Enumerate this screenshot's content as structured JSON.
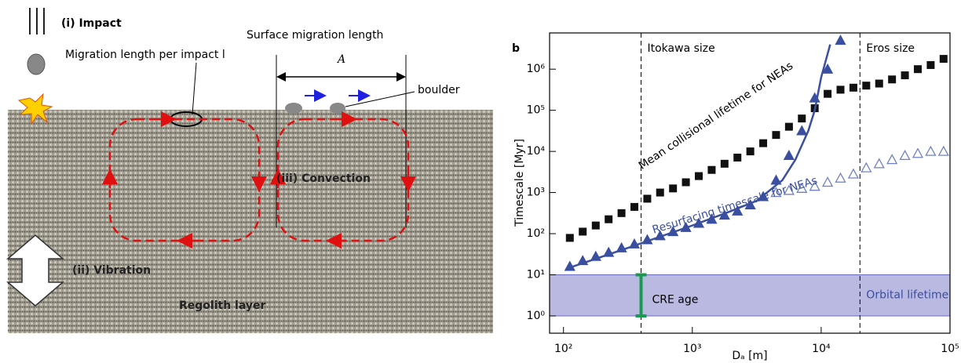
{
  "diagram": {
    "impact": "(i) Impact",
    "surface_migration": "Surface migration length",
    "A": "A",
    "migration_per_impact": "Migration length per impact l",
    "boulder": "boulder",
    "convection": "(iii) Convection",
    "vibration": "(ii) Vibration",
    "regolith": "Regolith layer"
  },
  "chart_data": {
    "type": "scatter",
    "panel": "b",
    "xlabel": "Dₐ [m]",
    "ylabel": "Timescale [Myr]",
    "log_x": true,
    "log_y": true,
    "xlim": [
      78,
      100000
    ],
    "ylim": [
      0.38,
      7600000
    ],
    "xticks": [
      {
        "value": 100,
        "label": "10²"
      },
      {
        "value": 1000,
        "label": "10³"
      },
      {
        "value": 10000,
        "label": "10⁴"
      },
      {
        "value": 100000,
        "label": "10⁵"
      }
    ],
    "yticks": [
      {
        "value": 1,
        "label": "10⁰"
      },
      {
        "value": 10,
        "label": "10¹"
      },
      {
        "value": 100,
        "label": "10²"
      },
      {
        "value": 1000,
        "label": "10³"
      },
      {
        "value": 10000,
        "label": "10⁴"
      },
      {
        "value": 100000,
        "label": "10⁵"
      },
      {
        "value": 1000000,
        "label": "10⁶"
      }
    ],
    "series": [
      {
        "marker": "square",
        "color": "#111111",
        "x": [
          112,
          141,
          178,
          224,
          282,
          355,
          447,
          562,
          708,
          891,
          1122,
          1413,
          1778,
          2239,
          2818,
          3548,
          4467,
          5623,
          7079,
          8913,
          11220,
          14125,
          17783,
          22387,
          28184,
          35481,
          44668,
          56234,
          70795,
          89125
        ],
        "values": [
          79,
          112,
          158,
          224,
          316,
          447,
          708,
          1000,
          1259,
          1778,
          2512,
          3548,
          5012,
          7079,
          10000,
          15849,
          25119,
          39811,
          63096,
          112202,
          251189,
          316228,
          354813,
          398107,
          446684,
          562341,
          707946,
          1000000,
          1258925,
          1778279
        ]
      },
      {
        "marker": "triangle",
        "color": "#3a4fa0",
        "x": [
          112,
          141,
          178,
          224,
          282,
          355,
          447,
          562,
          708,
          891,
          1122,
          1413,
          1778,
          2239,
          2818,
          3548,
          4467,
          5623,
          7079,
          8913,
          11220,
          14125
        ],
        "values": [
          16,
          22,
          28,
          35,
          45,
          56,
          71,
          89,
          112,
          141,
          178,
          224,
          282,
          355,
          501,
          794,
          1995,
          7943,
          31623,
          199526,
          1000000,
          5011872
        ]
      },
      {
        "marker": "open-triangle",
        "color": "#7080c0",
        "x": [
          4467,
          5623,
          7079,
          8913,
          11220,
          14125,
          17783,
          22387,
          28184,
          35481,
          44668,
          56234,
          70795,
          89125
        ],
        "values": [
          1000,
          1122,
          1259,
          1413,
          1778,
          2239,
          2818,
          3981,
          5012,
          6310,
          7943,
          8913,
          10000,
          10000
        ]
      },
      {
        "marker": "line",
        "color": "#3a4fa0",
        "x": [
          105,
          316,
          1000,
          2000,
          3162,
          5000,
          6310,
          7943,
          8913,
          10000,
          11749
        ],
        "values": [
          14,
          45,
          158,
          355,
          631,
          2000,
          6310,
          31623,
          100000,
          630957,
          3981072
        ]
      }
    ],
    "annotations": [
      {
        "text": "Mean collisional lifetime for NEAs"
      },
      {
        "text": "Resurfacing timescale for NEAs"
      }
    ],
    "vlines": [
      {
        "value": 400,
        "label": "Itokawa size"
      },
      {
        "value": 20000,
        "label": "Eros size"
      }
    ],
    "band": {
      "range": [
        1,
        10
      ],
      "label": "Orbital lifetime",
      "color": "#b9b9e2"
    },
    "error_bar": {
      "x": 400,
      "range": [
        1,
        10
      ],
      "label": "CRE age",
      "color": "#1a9a50"
    }
  }
}
